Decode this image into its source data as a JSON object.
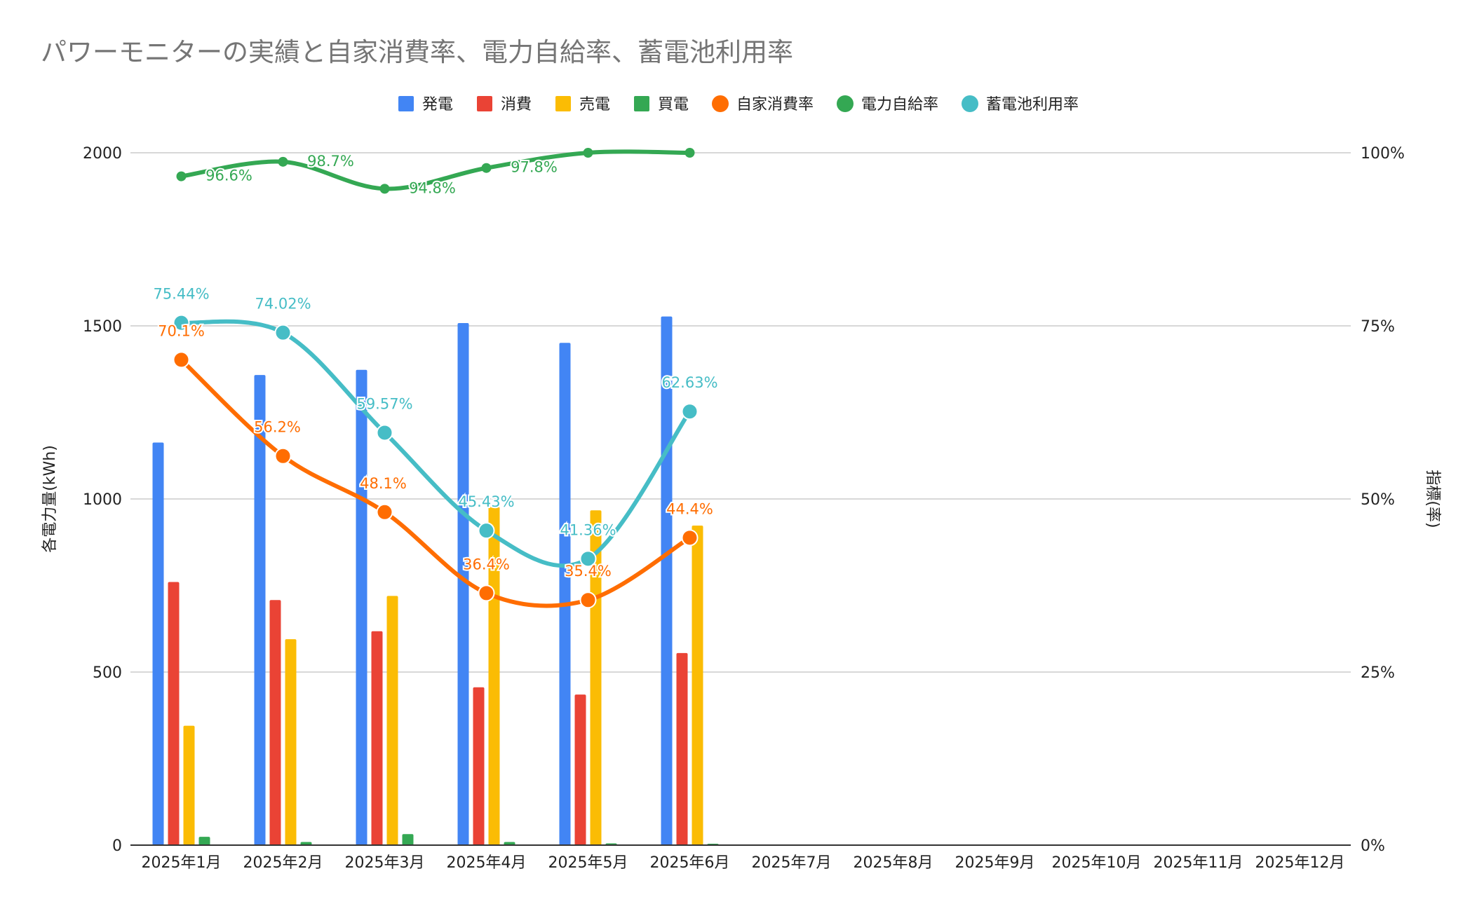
{
  "chart_data": {
    "type": "bar",
    "title": "パワーモニターの実績と自家消費率、電力自給率、蓄電池利用率",
    "categories": [
      "2025年1月",
      "2025年2月",
      "2025年3月",
      "2025年4月",
      "2025年5月",
      "2025年6月",
      "2025年7月",
      "2025年8月",
      "2025年9月",
      "2025年10月",
      "2025年11月",
      "2025年12月"
    ],
    "ylabel": "各電力量(kWh)",
    "y2label": "指標(率)",
    "ylim": [
      0,
      2000
    ],
    "yticks": [
      "0",
      "500",
      "1000",
      "1500",
      "2000"
    ],
    "y2lim": [
      0,
      100
    ],
    "y2ticks": [
      "0%",
      "25%",
      "50%",
      "75%",
      "100%"
    ],
    "grid": true,
    "legend_position": "top",
    "bar_series": [
      {
        "name": "発電",
        "color": "#4285F4",
        "values": [
          1163,
          1358,
          1373,
          1508,
          1451,
          1527,
          null,
          null,
          null,
          null,
          null,
          null
        ]
      },
      {
        "name": "消費",
        "color": "#EA4335",
        "values": [
          760,
          708,
          618,
          456,
          435,
          555,
          null,
          null,
          null,
          null,
          null,
          null
        ]
      },
      {
        "name": "売電",
        "color": "#FBBC04",
        "values": [
          345,
          595,
          720,
          977,
          967,
          923,
          null,
          null,
          null,
          null,
          null,
          null
        ]
      },
      {
        "name": "買電",
        "color": "#34A853",
        "values": [
          24,
          9,
          32,
          9,
          5,
          4,
          null,
          null,
          null,
          null,
          null,
          null
        ]
      }
    ],
    "line_series": [
      {
        "name": "自家消費率",
        "color": "#FF6D01",
        "axis": "right",
        "marker": "large",
        "values": [
          70.1,
          56.2,
          48.1,
          36.4,
          35.4,
          44.4,
          null,
          null,
          null,
          null,
          null,
          null
        ],
        "labels": [
          "70.1%",
          "56.2%",
          "48.1%",
          "36.4%",
          "35.4%",
          "44.4%"
        ]
      },
      {
        "name": "電力自給率",
        "color": "#34A853",
        "axis": "right",
        "marker": "small",
        "values": [
          96.6,
          98.7,
          94.8,
          97.8,
          100,
          100,
          null,
          null,
          null,
          null,
          null,
          null
        ],
        "labels": [
          "96.6%",
          "98.7%",
          "94.8%",
          "97.8%",
          "",
          ""
        ]
      },
      {
        "name": "蓄電池利用率",
        "color": "#46BDC6",
        "axis": "right",
        "marker": "large",
        "values": [
          75.44,
          74.02,
          59.57,
          45.43,
          41.36,
          62.63,
          null,
          null,
          null,
          null,
          null,
          null
        ],
        "labels": [
          "75.44%",
          "74.02%",
          "59.57%",
          "45.43%",
          "41.36%",
          "62.63%"
        ]
      }
    ]
  }
}
